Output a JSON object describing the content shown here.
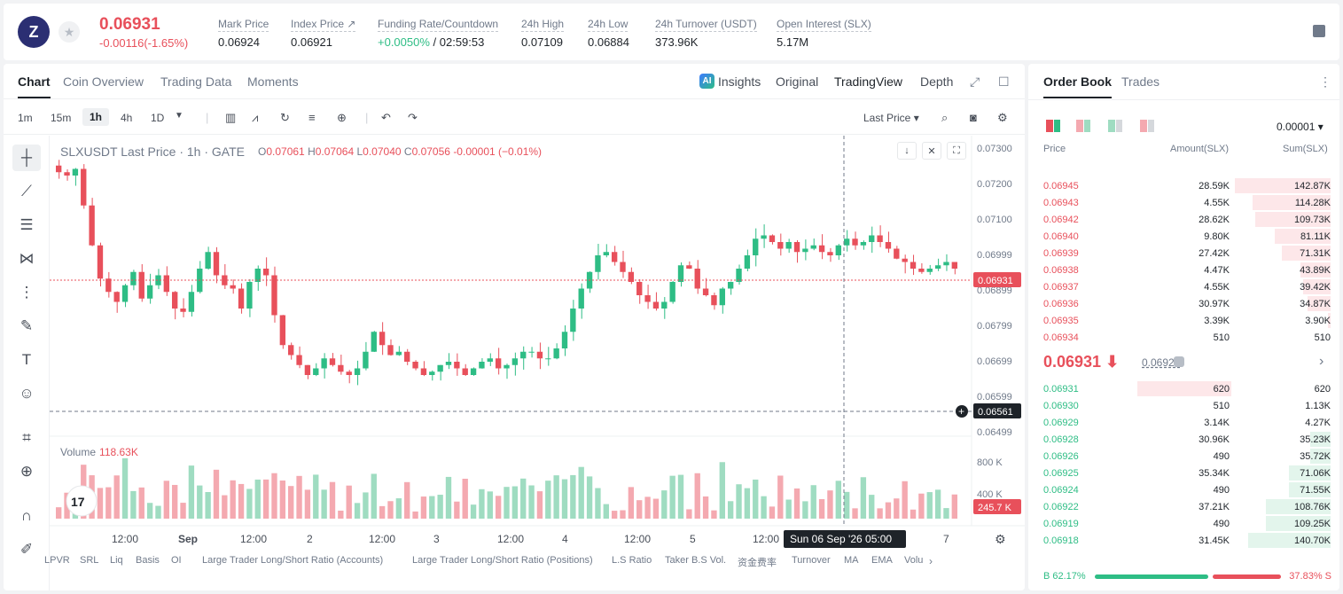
{
  "ticker": {
    "logo_glyph": "Z",
    "last_price": "0.06931",
    "change": "-0.00116(-1.65%)",
    "stats": [
      {
        "label": "Mark Price",
        "value": "0.06924"
      },
      {
        "label": "Index Price ↗",
        "value": "0.06921"
      },
      {
        "label": "Funding Rate/Countdown",
        "value_green": "+0.0050%",
        "value": " / 02:59:53"
      },
      {
        "label": "24h High",
        "value": "0.07109"
      },
      {
        "label": "24h Low",
        "value": "0.06884"
      },
      {
        "label": "24h Turnover (USDT)",
        "value": "373.96K"
      },
      {
        "label": "Open Interest (SLX)",
        "value": "5.17M"
      }
    ]
  },
  "chart_tabs": [
    "Chart",
    "Coin Overview",
    "Trading Data",
    "Moments"
  ],
  "chart_views": {
    "ai_badge": "AI",
    "insights": "Insights",
    "original": "Original",
    "tradingview": "TradingView",
    "depth": "Depth"
  },
  "timeframes": [
    "1m",
    "15m",
    "1h",
    "4h",
    "1D"
  ],
  "active_timeframe": "1h",
  "price_type": "Last Price ▾",
  "legend": {
    "title": "SLXUSDT Last Price · 1h · GATE",
    "o_key": "O",
    "o": "0.07061",
    "h_key": "H",
    "h": "0.07064",
    "l_key": "L",
    "l": "0.07040",
    "c_key": "C",
    "c": "0.07056",
    "chg": "-0.00001 (−0.01%)"
  },
  "volume_legend": {
    "label": "Volume",
    "value": "118.63K"
  },
  "chart_data": {
    "type": "candlestick",
    "title": "SLXUSDT Last Price · 1h · GATE",
    "price_ticks": [
      "0.07300",
      "0.07200",
      "0.07100",
      "0.06999",
      "0.06899",
      "0.06799",
      "0.06699",
      "0.06599",
      "0.06499"
    ],
    "price_range": [
      0.0645,
      0.0733
    ],
    "last_price_label": "0.06931",
    "crosshair_price_label": "0.06561",
    "crosshair_time_label": "Sun 06 Sep '26   05:00",
    "volume_ticks": [
      "800 K",
      "400 K"
    ],
    "volume_range": [
      0,
      1000
    ],
    "last_volume_label": "245.7 K",
    "x_ticks": [
      "12:00",
      "Sep",
      "12:00",
      "2",
      "12:00",
      "3",
      "12:00",
      "4",
      "12:00",
      "5",
      "12:00",
      "7"
    ],
    "close_path": [
      0.0722,
      0.0721,
      0.0723,
      0.0712,
      0.07,
      0.069,
      0.0686,
      0.0683,
      0.0688,
      0.0692,
      0.0684,
      0.0688,
      0.0691,
      0.0686,
      0.0681,
      0.068,
      0.0686,
      0.0693,
      0.0698,
      0.0691,
      0.0688,
      0.0687,
      0.0681,
      0.0689,
      0.0693,
      0.0691,
      0.0679,
      0.067,
      0.0667,
      0.0664,
      0.0661,
      0.0663,
      0.0666,
      0.0664,
      0.0662,
      0.0661,
      0.0663,
      0.0668,
      0.0674,
      0.067,
      0.0667,
      0.0668,
      0.0665,
      0.0663,
      0.0661,
      0.0662,
      0.0664,
      0.0665,
      0.0663,
      0.0661,
      0.0663,
      0.0665,
      0.0666,
      0.0663,
      0.0664,
      0.0666,
      0.0668,
      0.0668,
      0.0666,
      0.0666,
      0.0669,
      0.0674,
      0.0681,
      0.0687,
      0.0692,
      0.0697,
      0.0698,
      0.0695,
      0.0692,
      0.0689,
      0.0685,
      0.0683,
      0.0681,
      0.0683,
      0.0689,
      0.0694,
      0.0693,
      0.0687,
      0.0685,
      0.0682,
      0.0687,
      0.0689,
      0.0693,
      0.0697,
      0.0702,
      0.0703,
      0.0701,
      0.0699,
      0.0701,
      0.0698,
      0.0699,
      0.07,
      0.0698,
      0.0697,
      0.07,
      0.0702,
      0.07,
      0.0701,
      0.0703,
      0.0701,
      0.0699,
      0.0696,
      0.0695,
      0.0693,
      0.0692,
      0.0693,
      0.0694,
      0.0695,
      0.0693
    ]
  },
  "ohlc_chg_color": "#e8505b",
  "indicators": [
    "LPVR",
    "SRL",
    "Liq",
    "Basis",
    "OI",
    "Large Trader Long/Short Ratio (Accounts)",
    "Large Trader Long/Short Ratio (Positions)",
    "L.S Ratio",
    "Taker B.S Vol.",
    "资金费率",
    "Turnover",
    "MA",
    "EMA",
    "Volu"
  ],
  "orderbook": {
    "tabs": [
      "Order Book",
      "Trades"
    ],
    "precision": "0.00001 ▾",
    "columns": {
      "price": "Price",
      "amount": "Amount(SLX)",
      "sum": "Sum(SLX)"
    },
    "asks": [
      {
        "price": "0.06945",
        "amount": "28.59K",
        "sum": "142.87K",
        "depth": 0.98
      },
      {
        "price": "0.06943",
        "amount": "4.55K",
        "sum": "114.28K",
        "depth": 0.8
      },
      {
        "price": "0.06942",
        "amount": "28.62K",
        "sum": "109.73K",
        "depth": 0.77
      },
      {
        "price": "0.06940",
        "amount": "9.80K",
        "sum": "81.11K",
        "depth": 0.57
      },
      {
        "price": "0.06939",
        "amount": "27.42K",
        "sum": "71.31K",
        "depth": 0.5
      },
      {
        "price": "0.06938",
        "amount": "4.47K",
        "sum": "43.89K",
        "depth": 0.31
      },
      {
        "price": "0.06937",
        "amount": "4.55K",
        "sum": "39.42K",
        "depth": 0.28
      },
      {
        "price": "0.06936",
        "amount": "30.97K",
        "sum": "34.87K",
        "depth": 0.24
      },
      {
        "price": "0.06935",
        "amount": "3.39K",
        "sum": "3.90K",
        "depth": 0.03
      },
      {
        "price": "0.06934",
        "amount": "510",
        "sum": "510",
        "depth": 0.0
      }
    ],
    "mid_price": "0.06931 ⬇",
    "mark_price": "0.06924",
    "bids": [
      {
        "price": "0.06931",
        "amount": "620",
        "sum": "620",
        "depth": 0.0,
        "amt_bar": 0.33
      },
      {
        "price": "0.06930",
        "amount": "510",
        "sum": "1.13K",
        "depth": 0.0
      },
      {
        "price": "0.06929",
        "amount": "3.14K",
        "sum": "4.27K",
        "depth": 0.0
      },
      {
        "price": "0.06928",
        "amount": "30.96K",
        "sum": "35.23K",
        "depth": 0.21
      },
      {
        "price": "0.06926",
        "amount": "490",
        "sum": "35.72K",
        "depth": 0.21
      },
      {
        "price": "0.06925",
        "amount": "35.34K",
        "sum": "71.06K",
        "depth": 0.43
      },
      {
        "price": "0.06924",
        "amount": "490",
        "sum": "71.55K",
        "depth": 0.43
      },
      {
        "price": "0.06922",
        "amount": "37.21K",
        "sum": "108.76K",
        "depth": 0.66
      },
      {
        "price": "0.06919",
        "amount": "490",
        "sum": "109.25K",
        "depth": 0.66
      },
      {
        "price": "0.06918",
        "amount": "31.45K",
        "sum": "140.70K",
        "depth": 0.85
      }
    ],
    "buy_ratio": "B 62.17%",
    "sell_ratio": "37.83% S",
    "buy_fraction": 0.6217
  },
  "colors": {
    "up": "#2ebd85",
    "down": "#e8505b",
    "up_soft": "#9fdcc1",
    "down_soft": "#f4a9b0"
  }
}
